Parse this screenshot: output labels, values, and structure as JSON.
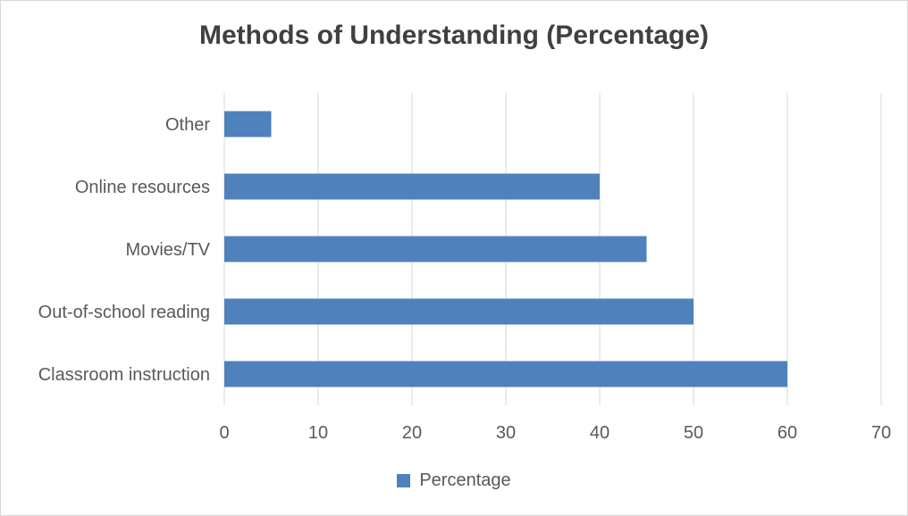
{
  "chart_data": {
    "type": "bar",
    "orientation": "horizontal",
    "title": "Methods of Understanding (Percentage)",
    "categories": [
      "Classroom instruction",
      "Out-of-school reading",
      "Movies/TV",
      "Online resources",
      "Other"
    ],
    "series": [
      {
        "name": "Percentage",
        "values": [
          60,
          50,
          45,
          40,
          5
        ],
        "color": "#4f81bd"
      }
    ],
    "xlim": [
      0,
      70
    ],
    "xticks": [
      0,
      10,
      20,
      30,
      40,
      50,
      60,
      70
    ],
    "grid": true,
    "legend_position": "bottom"
  }
}
